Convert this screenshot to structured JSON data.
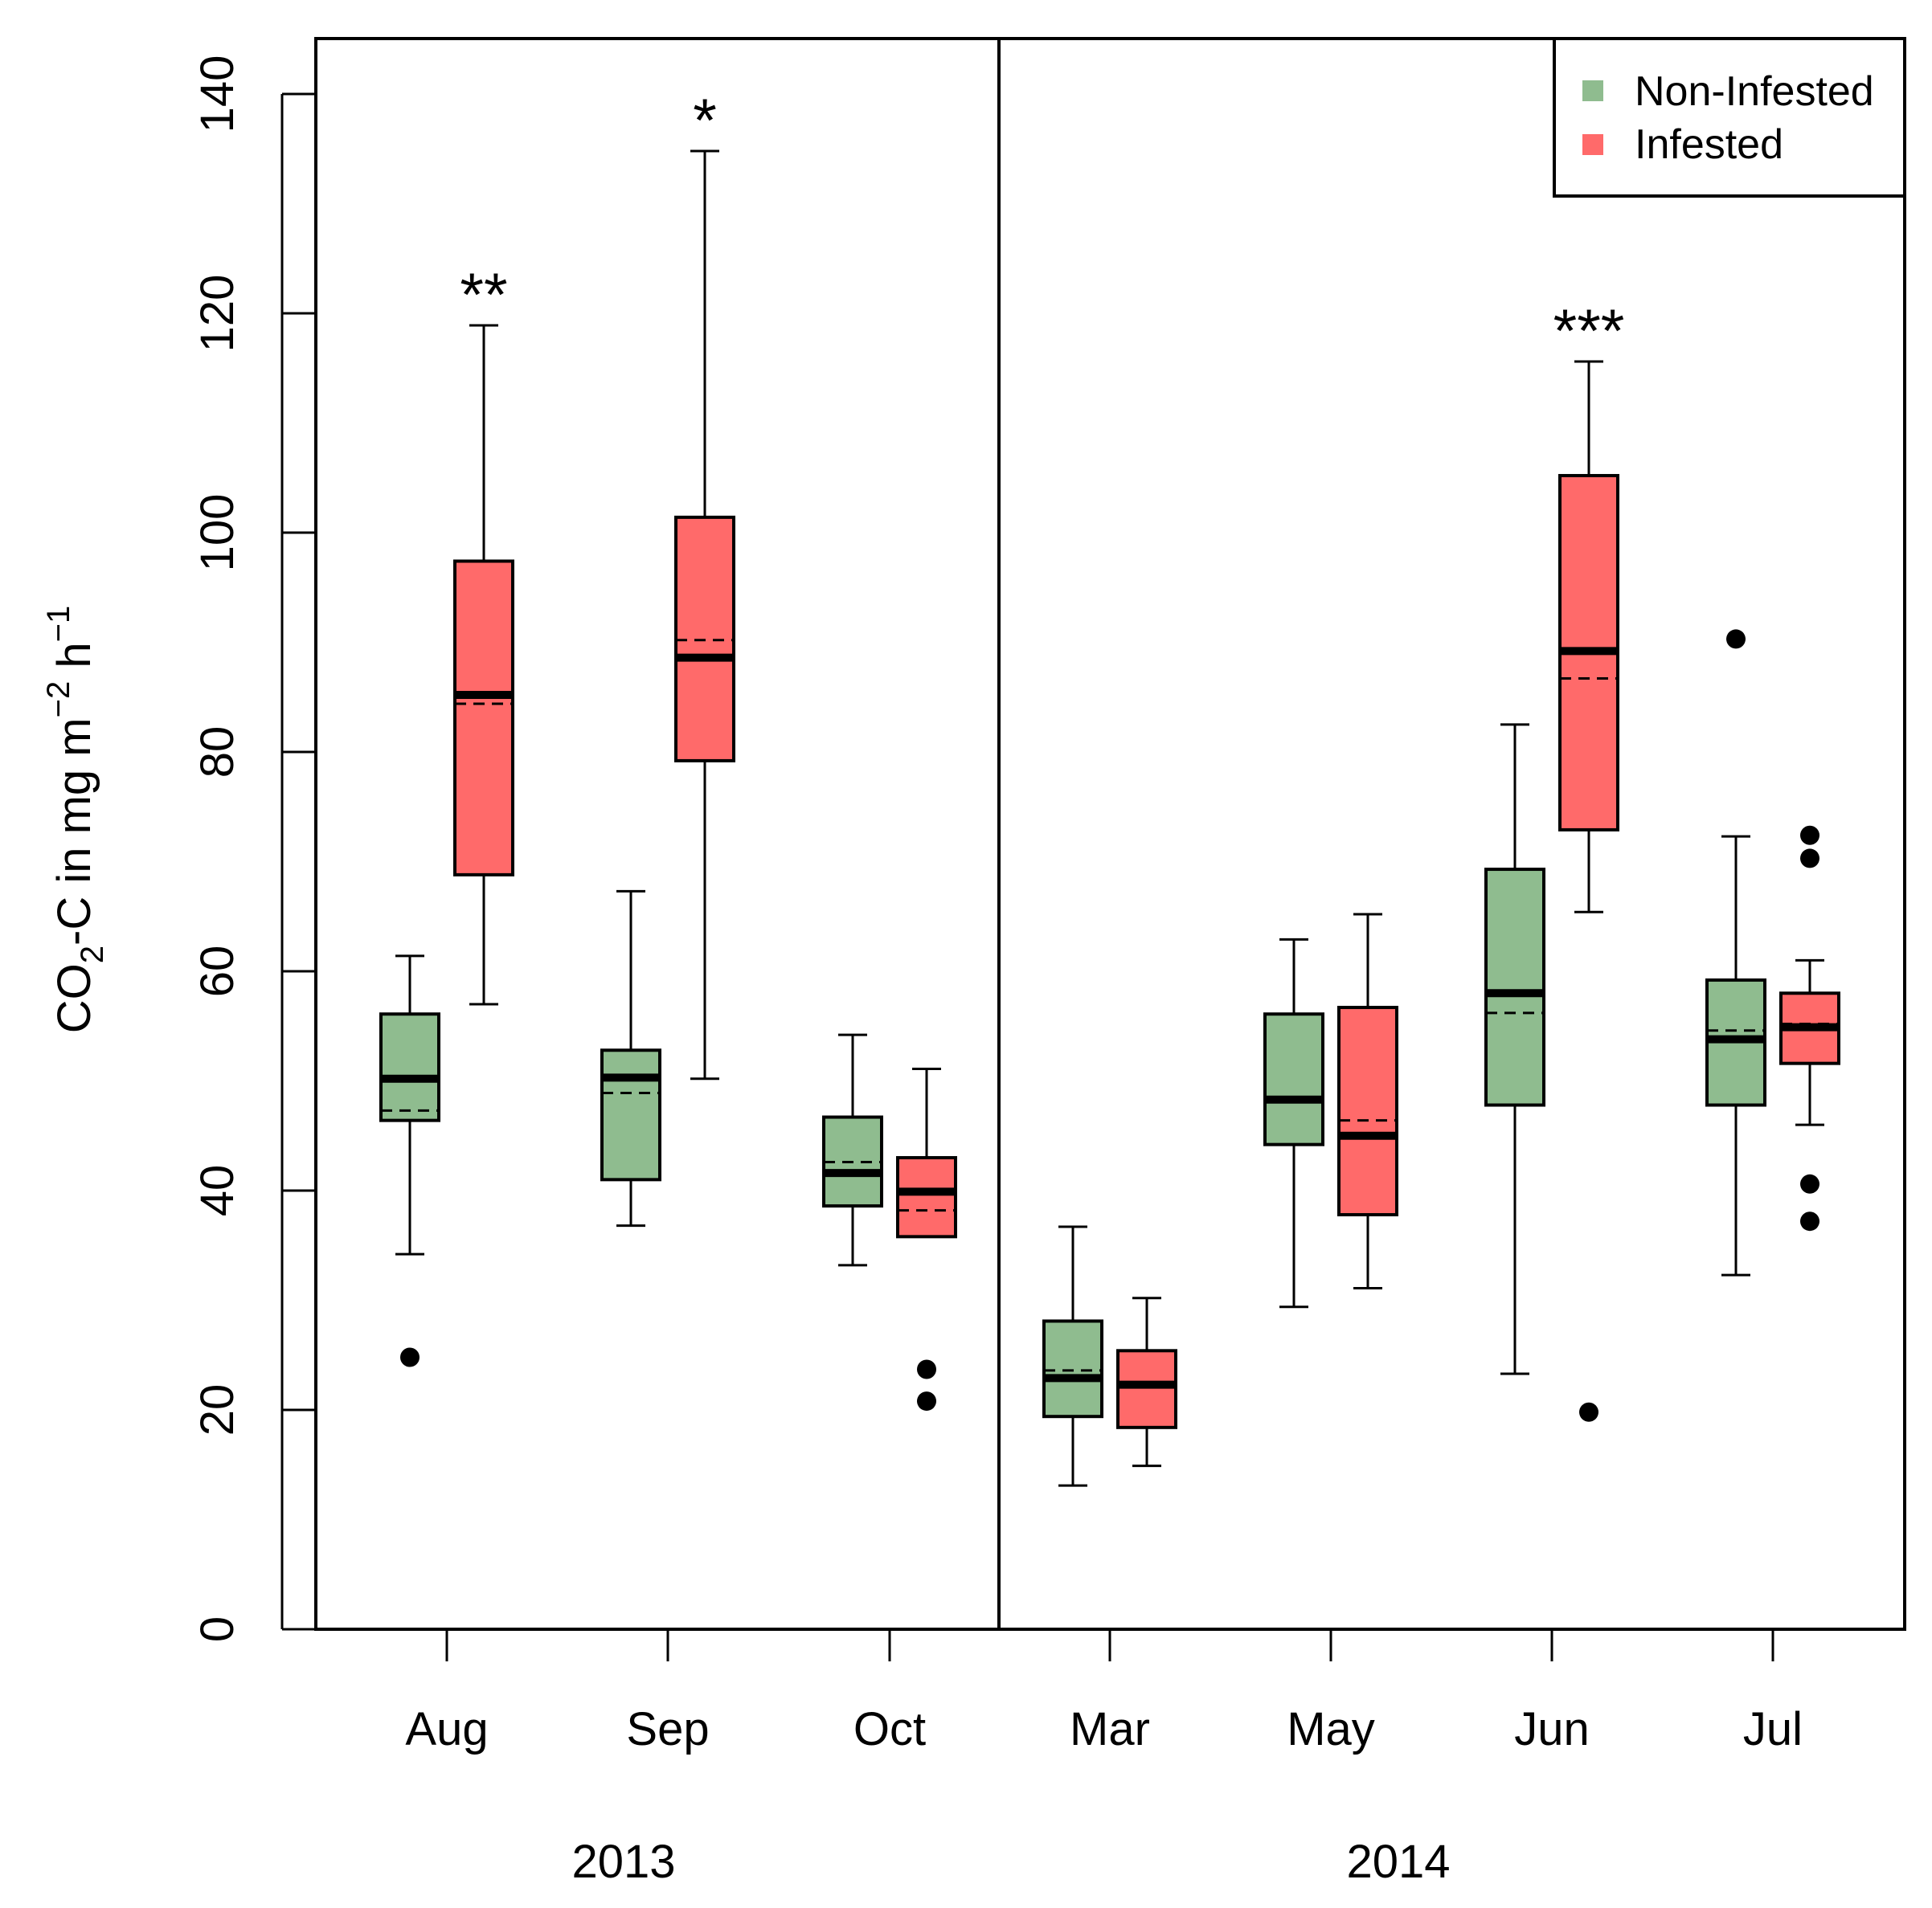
{
  "chart_data": {
    "type": "boxplot",
    "ylabel": "CO2-C in mg m-2 h-1",
    "ylabel_parts": {
      "base": "CO",
      "sub": "2",
      "mid": "-C in mg m",
      "sup1": "−2",
      "mid2": " h",
      "sup2": "−1"
    },
    "ylim": [
      0,
      145
    ],
    "yticks": [
      0,
      20,
      40,
      60,
      80,
      100,
      120,
      140
    ],
    "categories": [
      "Aug",
      "Sep",
      "Oct",
      "Mar",
      "May",
      "Jun",
      "Jul"
    ],
    "years": [
      {
        "label": "2013",
        "months": [
          "Aug",
          "Sep",
          "Oct"
        ]
      },
      {
        "label": "2014",
        "months": [
          "Mar",
          "May",
          "Jun",
          "Jul"
        ]
      }
    ],
    "legend": {
      "position": "top-right",
      "entries": [
        {
          "name": "Non-Infested",
          "color": "#8fbc8f"
        },
        {
          "name": "Infested",
          "color": "#ff6a6a"
        }
      ]
    },
    "series": [
      {
        "name": "Non-Infested",
        "color": "#8fbc8f",
        "boxes": [
          {
            "category": "Aug",
            "whisker_low": 34.2,
            "q1": 46.4,
            "median": 50.2,
            "mean": 47.3,
            "q3": 56.1,
            "whisker_high": 61.4,
            "outliers": [
              24.8
            ]
          },
          {
            "category": "Sep",
            "whisker_low": 36.8,
            "q1": 41.0,
            "median": 50.3,
            "mean": 48.9,
            "q3": 52.8,
            "whisker_high": 67.3,
            "outliers": []
          },
          {
            "category": "Oct",
            "whisker_low": 33.2,
            "q1": 38.6,
            "median": 41.6,
            "mean": 42.6,
            "q3": 46.7,
            "whisker_high": 54.2,
            "outliers": []
          },
          {
            "category": "Mar",
            "whisker_low": 13.1,
            "q1": 19.4,
            "median": 22.9,
            "mean": 23.6,
            "q3": 28.1,
            "whisker_high": 36.7,
            "outliers": []
          },
          {
            "category": "May",
            "whisker_low": 29.4,
            "q1": 44.2,
            "median": 48.3,
            "mean": 48.1,
            "q3": 56.1,
            "whisker_high": 62.9,
            "outliers": []
          },
          {
            "category": "Jun",
            "whisker_low": 23.3,
            "q1": 47.8,
            "median": 58.0,
            "mean": 56.2,
            "q3": 69.3,
            "whisker_high": 82.5,
            "outliers": []
          },
          {
            "category": "Jul",
            "whisker_low": 32.3,
            "q1": 47.8,
            "median": 53.8,
            "mean": 54.6,
            "q3": 59.2,
            "whisker_high": 72.3,
            "outliers": [
              90.3
            ]
          }
        ]
      },
      {
        "name": "Infested",
        "color": "#ff6a6a",
        "boxes": [
          {
            "category": "Aug",
            "whisker_low": 57.0,
            "q1": 68.8,
            "median": 85.2,
            "mean": 84.4,
            "q3": 97.4,
            "whisker_high": 118.9,
            "outliers": [],
            "significance": "**"
          },
          {
            "category": "Sep",
            "whisker_low": 50.2,
            "q1": 79.2,
            "median": 88.6,
            "mean": 90.2,
            "q3": 101.4,
            "whisker_high": 134.8,
            "outliers": [],
            "significance": "*"
          },
          {
            "category": "Oct",
            "whisker_low": 35.8,
            "q1": 35.8,
            "median": 39.9,
            "mean": 38.2,
            "q3": 43.0,
            "whisker_high": 51.1,
            "outliers": [
              23.7,
              20.8
            ]
          },
          {
            "category": "Mar",
            "whisker_low": 14.9,
            "q1": 18.4,
            "median": 22.3,
            "mean": 22.3,
            "q3": 25.4,
            "whisker_high": 30.2,
            "outliers": []
          },
          {
            "category": "May",
            "whisker_low": 31.1,
            "q1": 37.8,
            "median": 45.0,
            "mean": 46.4,
            "q3": 56.7,
            "whisker_high": 65.2,
            "outliers": []
          },
          {
            "category": "Jun",
            "whisker_low": 65.4,
            "q1": 72.9,
            "median": 89.2,
            "mean": 86.7,
            "q3": 105.2,
            "whisker_high": 115.6,
            "outliers": [
              19.8
            ],
            "significance": "***"
          },
          {
            "category": "Jul",
            "whisker_low": 46.0,
            "q1": 51.6,
            "median": 54.9,
            "mean": 55.2,
            "q3": 58.0,
            "whisker_high": 61.0,
            "outliers": [
              72.4,
              70.3,
              40.6,
              37.2
            ]
          }
        ]
      }
    ]
  }
}
